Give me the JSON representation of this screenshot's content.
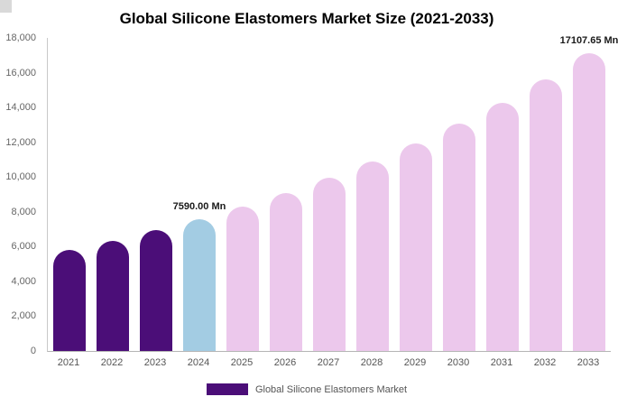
{
  "title": "Global Silicone Elastomers Market Size (2021-2033)",
  "legend": {
    "label": "Global Silicone Elastomers Market",
    "color": "#4b0e78"
  },
  "axis": {
    "y_tick_labels": [
      "0",
      "2,000",
      "4,000",
      "6,000",
      "8,000",
      "10,000",
      "12,000",
      "14,000",
      "16,000",
      "18,000"
    ],
    "y_tick_values": [
      0,
      2000,
      4000,
      6000,
      8000,
      10000,
      12000,
      14000,
      16000,
      18000
    ]
  },
  "chart_data": {
    "type": "bar",
    "title": "Global Silicone Elastomers Market Size (2021-2033)",
    "xlabel": "",
    "ylabel": "",
    "ylim": [
      0,
      18000
    ],
    "grid": false,
    "legend_position": "bottom",
    "categories": [
      "2021",
      "2022",
      "2023",
      "2024",
      "2025",
      "2026",
      "2027",
      "2028",
      "2029",
      "2030",
      "2031",
      "2032",
      "2033"
    ],
    "values": [
      5788,
      6335,
      6934,
      7590,
      8307,
      9092,
      9951,
      10892,
      11921,
      13048,
      14281,
      15631,
      17107.65
    ],
    "bar_colors": [
      "#4b0e78",
      "#4b0e78",
      "#4b0e78",
      "#a3cce3",
      "#ecc8ec",
      "#ecc8ec",
      "#ecc8ec",
      "#ecc8ec",
      "#ecc8ec",
      "#ecc8ec",
      "#ecc8ec",
      "#ecc8ec",
      "#ecc8ec"
    ],
    "annotations": [
      {
        "category": "2024",
        "text": "7590.00 Mn"
      },
      {
        "category": "2033",
        "text": "17107.65 Mn"
      }
    ]
  }
}
